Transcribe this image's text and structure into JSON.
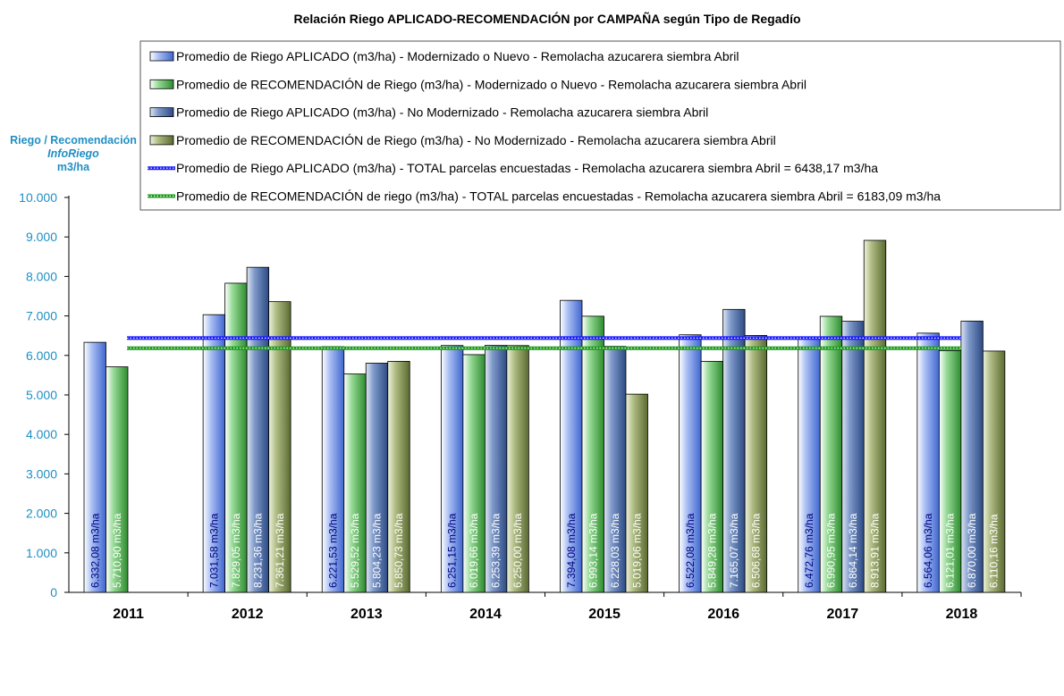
{
  "chart_data": {
    "type": "bar",
    "title": "Relación Riego APLICADO-RECOMENDACIÓN por CAMPAÑA  según Tipo de Regadío",
    "ylabel": [
      "Riego / Recomendación",
      "InfoRiego",
      "m3/ha"
    ],
    "ylim": [
      0,
      10000
    ],
    "yticks": [
      "0",
      "1.000",
      "2.000",
      "3.000",
      "4.000",
      "5.000",
      "6.000",
      "7.000",
      "8.000",
      "9.000",
      "10.000"
    ],
    "categories": [
      "2011",
      "2012",
      "2013",
      "2014",
      "2015",
      "2016",
      "2017",
      "2018"
    ],
    "series": [
      {
        "name": "Promedio de Riego APLICADO (m3/ha) - Modernizado o Nuevo - Remolacha azucarera siembra Abril",
        "color": "#6f8fe0",
        "values": [
          6332.08,
          7031.58,
          6221.53,
          6251.15,
          7394.08,
          6522.08,
          6472.76,
          6564.06
        ],
        "labels": [
          "6.332,08  m3/ha",
          "7.031,58  m3/ha",
          "6.221,53  m3/ha",
          "6.251,15  m3/ha",
          "7.394,08  m3/ha",
          "6.522,08  m3/ha",
          "6.472,76  m3/ha",
          "6.564,06  m3/ha"
        ]
      },
      {
        "name": "Promedio de RECOMENDACIÓN de Riego (m3/ha) - Modernizado o Nuevo - Remolacha azucarera siembra Abril",
        "color": "#4ea84e",
        "values": [
          5710.9,
          7829.05,
          5529.52,
          6019.66,
          6993.14,
          5849.28,
          6990.95,
          6121.01
        ],
        "labels": [
          "5.710,90  m3/ha",
          "7.829,05  m3/ha",
          "5.529,52  m3/ha",
          "6.019,66  m3/ha",
          "6.993,14  m3/ha",
          "5.849,28  m3/ha",
          "6.990,95  m3/ha",
          "6.121,01  m3/ha"
        ]
      },
      {
        "name": "Promedio de Riego APLICADO (m3/ha) - No Modernizado - Remolacha azucarera siembra Abril",
        "color": "#4a6aa8",
        "values": [
          null,
          8231.36,
          5804.23,
          6253.39,
          6228.03,
          7165.07,
          6864.14,
          6870.0
        ],
        "labels": [
          "",
          "8.231,36  m3/ha",
          "5.804,23  m3/ha",
          "6.253,39  m3/ha",
          "6.228,03  m3/ha",
          "7.165,07  m3/ha",
          "6.864,14  m3/ha",
          "6.870,00  m3/ha"
        ]
      },
      {
        "name": "Promedio de RECOMENDACIÓN de Riego (m3/ha) - No Modernizado - Remolacha azucarera siembra Abril",
        "color": "#7f9050",
        "values": [
          null,
          7361.21,
          5850.73,
          6250.0,
          5019.06,
          6506.68,
          8913.91,
          6110.16
        ],
        "labels": [
          "",
          "7.361,21  m3/ha",
          "5.850,73  m3/ha",
          "6.250,00  m3/ha",
          "5.019,06  m3/ha",
          "6.506,68  m3/ha",
          "8.913,91  m3/ha",
          "6.110,16  m3/ha"
        ]
      }
    ],
    "reference_lines": [
      {
        "name": "Promedio de Riego APLICADO (m3/ha) - TOTAL parcelas encuestadas - Remolacha azucarera siembra Abril = 6438,17 m3/ha",
        "value": 6438.17,
        "color": "#1a1aff"
      },
      {
        "name": "Promedio de RECOMENDACIÓN de riego (m3/ha) - TOTAL parcelas encuestadas - Remolacha azucarera siembra Abril = 6183,09 m3/ha",
        "value": 6183.09,
        "color": "#1a9a1a"
      }
    ],
    "legend_position": "top-right",
    "grid": false
  }
}
